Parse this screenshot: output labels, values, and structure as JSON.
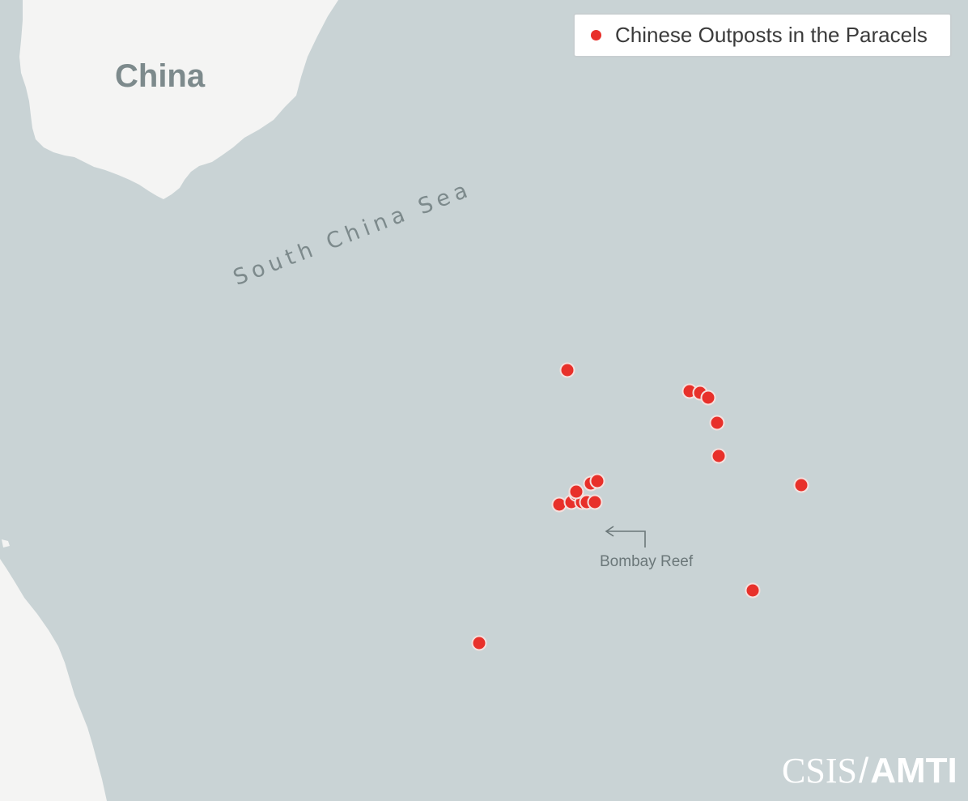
{
  "legend": {
    "label": "Chinese Outposts in the Paracels",
    "marker_color": "#e8302a"
  },
  "labels": {
    "country": "China",
    "sea": "South China Sea",
    "callout": "Bombay Reef"
  },
  "credit": {
    "org": "CSIS",
    "separator": "/",
    "program": "AMTI"
  },
  "colors": {
    "sea": "#c9d3d5",
    "land": "#f4f4f3",
    "marker": "#e8302a"
  },
  "outposts": [
    {
      "lon": 111.62,
      "lat": 17.08
    },
    {
      "lon": 112.2,
      "lat": 16.98
    },
    {
      "lon": 112.25,
      "lat": 16.97
    },
    {
      "lon": 112.29,
      "lat": 16.95
    },
    {
      "lon": 112.33,
      "lat": 16.83
    },
    {
      "lon": 112.34,
      "lat": 16.67
    },
    {
      "lon": 112.73,
      "lat": 16.53
    },
    {
      "lon": 111.73,
      "lat": 16.54
    },
    {
      "lon": 111.76,
      "lat": 16.55
    },
    {
      "lon": 111.58,
      "lat": 16.44
    },
    {
      "lon": 111.64,
      "lat": 16.45
    },
    {
      "lon": 111.66,
      "lat": 16.49
    },
    {
      "lon": 111.69,
      "lat": 16.45
    },
    {
      "lon": 111.71,
      "lat": 16.45
    },
    {
      "lon": 111.75,
      "lat": 16.45
    },
    {
      "lon": 111.66,
      "lat": 16.5
    },
    {
      "lon": 112.5,
      "lat": 16.03
    },
    {
      "lon": 111.2,
      "lat": 15.78
    }
  ]
}
